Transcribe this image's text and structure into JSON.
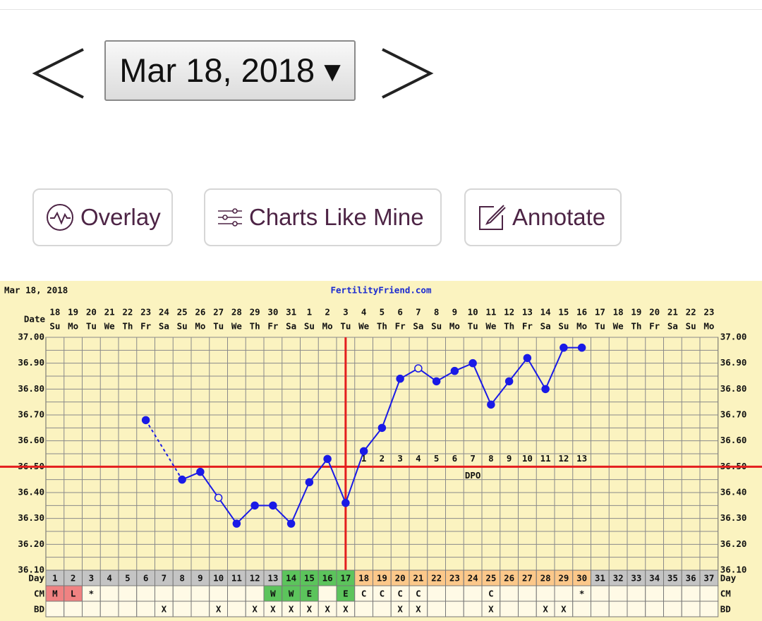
{
  "nav": {
    "date_button": "Mar 18, 2018 ▾"
  },
  "toolbar": {
    "buttons": [
      "Overlay",
      "Charts Like Mine",
      "Annotate"
    ]
  },
  "chart_data": {
    "type": "line",
    "header_left": "Mar 18, 2018",
    "title": "FertilityFriend.com",
    "date_label": "Date",
    "dates": [
      18,
      19,
      20,
      21,
      22,
      23,
      24,
      25,
      26,
      27,
      28,
      29,
      30,
      31,
      1,
      2,
      3,
      4,
      5,
      6,
      7,
      8,
      9,
      10,
      11,
      12,
      13,
      14,
      15,
      16,
      17,
      18,
      19,
      20,
      21,
      22,
      23
    ],
    "weekdays": [
      "Su",
      "Mo",
      "Tu",
      "We",
      "Th",
      "Fr",
      "Sa",
      "Su",
      "Mo",
      "Tu",
      "We",
      "Th",
      "Fr",
      "Sa",
      "Su",
      "Mo",
      "Tu",
      "We",
      "Th",
      "Fr",
      "Sa",
      "Su",
      "Mo",
      "Tu",
      "We",
      "Th",
      "Fr",
      "Sa",
      "Su",
      "Mo",
      "Tu",
      "We",
      "Th",
      "Fr",
      "Sa",
      "Su",
      "Mo"
    ],
    "day_label": "Day",
    "days": [
      1,
      2,
      3,
      4,
      5,
      6,
      7,
      8,
      9,
      10,
      11,
      12,
      13,
      14,
      15,
      16,
      17,
      18,
      19,
      20,
      21,
      22,
      23,
      24,
      25,
      26,
      27,
      28,
      29,
      30,
      31,
      32,
      33,
      34,
      35,
      36,
      37
    ],
    "day_colors": [
      "#c4c4c4",
      "#c4c4c4",
      "#c4c4c4",
      "#c4c4c4",
      "#c4c4c4",
      "#c4c4c4",
      "#c4c4c4",
      "#c4c4c4",
      "#c4c4c4",
      "#c4c4c4",
      "#c4c4c4",
      "#c4c4c4",
      "#c4c4c4",
      "#5cc45c",
      "#5cc45c",
      "#5cc45c",
      "#5cc45c",
      "#fcc88a",
      "#fcc88a",
      "#fcc88a",
      "#fcc88a",
      "#fcc88a",
      "#fcc88a",
      "#fcc88a",
      "#fcc88a",
      "#fcc88a",
      "#fcc88a",
      "#fcc88a",
      "#fcc88a",
      "#fcc88a",
      "#c4c4c4",
      "#c4c4c4",
      "#c4c4c4",
      "#c4c4c4",
      "#c4c4c4",
      "#c4c4c4",
      "#c4c4c4"
    ],
    "values": [
      null,
      null,
      null,
      null,
      null,
      36.68,
      null,
      36.45,
      36.48,
      36.38,
      36.28,
      36.35,
      36.35,
      36.28,
      36.44,
      36.53,
      36.36,
      36.56,
      36.65,
      36.84,
      36.88,
      36.83,
      36.87,
      36.9,
      36.74,
      36.83,
      36.92,
      36.8,
      36.96,
      36.96,
      null,
      null,
      null,
      null,
      null,
      null,
      null
    ],
    "color": "#1a1ae6",
    "hollow_days": [
      10,
      21
    ],
    "ylim": [
      36.1,
      37.0
    ],
    "yticks": [
      {
        "value": 36.1,
        "label": "36.10"
      },
      {
        "value": 36.2,
        "label": "36.20"
      },
      {
        "value": 36.3,
        "label": "36.30"
      },
      {
        "value": 36.4,
        "label": "36.40"
      },
      {
        "value": 36.5,
        "label": "36.50"
      },
      {
        "value": 36.6,
        "label": "36.60"
      },
      {
        "value": 36.7,
        "label": "36.70"
      },
      {
        "value": 36.8,
        "label": "36.80"
      },
      {
        "value": 36.9,
        "label": "36.90"
      },
      {
        "value": 37.0,
        "label": "37.00"
      }
    ],
    "minor_yticks": [
      36.15,
      36.25,
      36.35,
      36.45,
      36.55,
      36.65,
      36.75,
      36.85,
      36.95
    ],
    "grid": true,
    "coverline": 36.5,
    "ovulation_day": 17,
    "marker_line_color": "#e41e1e",
    "dpo": [
      null,
      null,
      null,
      null,
      null,
      null,
      null,
      null,
      null,
      null,
      null,
      null,
      null,
      null,
      null,
      null,
      null,
      1,
      2,
      3,
      4,
      5,
      6,
      7,
      8,
      9,
      10,
      11,
      12,
      13,
      null,
      null,
      null,
      null,
      null,
      null,
      null
    ],
    "dpo_label": "DPO",
    "rows": [
      {
        "label": "CM",
        "cells": [
          "M",
          "L",
          "*",
          null,
          null,
          null,
          null,
          null,
          null,
          null,
          null,
          null,
          "W",
          "W",
          "E",
          null,
          "E",
          "C",
          "C",
          "C",
          "C",
          null,
          null,
          null,
          "C",
          null,
          null,
          null,
          null,
          "*",
          null,
          null,
          null,
          null,
          null,
          null,
          null
        ],
        "colors": [
          "#f08282",
          "#f08282",
          null,
          null,
          null,
          null,
          null,
          null,
          null,
          null,
          null,
          null,
          "#5cc45c",
          "#5cc45c",
          "#5cc45c",
          null,
          "#5cc45c",
          null,
          null,
          null,
          null,
          null,
          null,
          null,
          null,
          null,
          null,
          null,
          null,
          null,
          null,
          null,
          null,
          null,
          null,
          null,
          null
        ]
      },
      {
        "label": "BD",
        "cells": [
          null,
          null,
          null,
          null,
          null,
          null,
          "X",
          null,
          null,
          "X",
          null,
          "X",
          "X",
          "X",
          "X",
          "X",
          "X",
          null,
          null,
          "X",
          "X",
          null,
          null,
          null,
          "X",
          null,
          null,
          "X",
          "X",
          null,
          null,
          null,
          null,
          null,
          null,
          null,
          null
        ],
        "colors": [
          null,
          null,
          null,
          null,
          null,
          null,
          null,
          null,
          null,
          null,
          null,
          null,
          null,
          null,
          null,
          null,
          null,
          null,
          null,
          null,
          null,
          null,
          null,
          null,
          null,
          null,
          null,
          null,
          null,
          null,
          null,
          null,
          null,
          null,
          null,
          null,
          null
        ]
      }
    ]
  }
}
